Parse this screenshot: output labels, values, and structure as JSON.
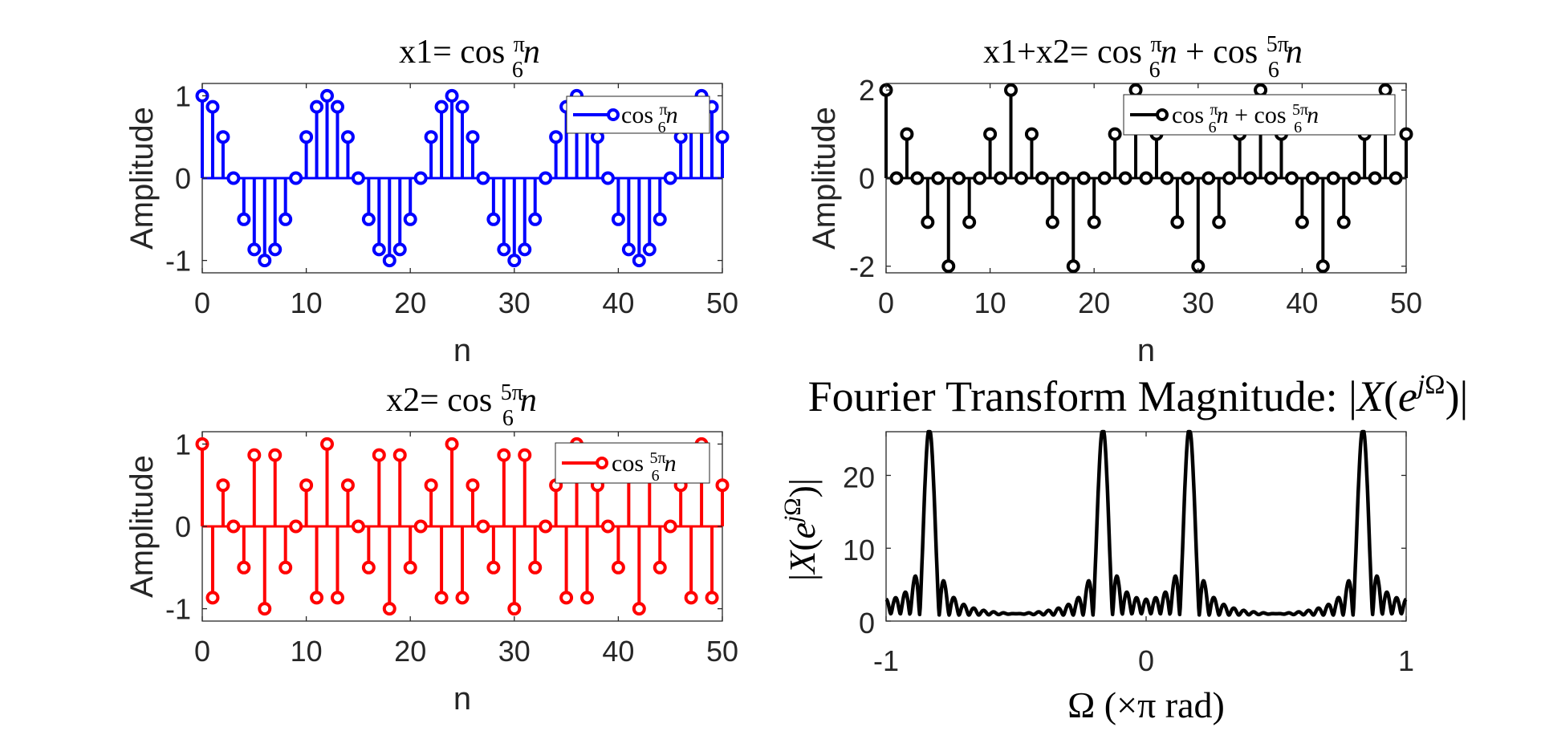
{
  "chart_data": [
    {
      "type": "stem",
      "title": "x1= cos π/6 n",
      "xlabel": "n",
      "ylabel": "Amplitude",
      "xlim": [
        0,
        50
      ],
      "ylim": [
        -1.15,
        1.15
      ],
      "xticks": [
        "0",
        "10",
        "20",
        "30",
        "40",
        "50"
      ],
      "yticks": [
        "1",
        "0",
        "-1"
      ],
      "color": "#0000ff",
      "legend": {
        "label": "cos π/6 n",
        "placement": "top-right"
      },
      "series": [
        {
          "x_start": 0,
          "x_end": 50,
          "step": 1,
          "formula": "cos(π/6 n)"
        }
      ]
    },
    {
      "type": "stem",
      "title": "x1+x2= cos π/6 n + cos 5π/6 n",
      "xlabel": "n",
      "ylabel": "Amplitude",
      "xlim": [
        0,
        50
      ],
      "ylim": [
        -2.15,
        2.15
      ],
      "xticks": [
        "0",
        "10",
        "20",
        "30",
        "40",
        "50"
      ],
      "yticks": [
        "2",
        "0",
        "-2"
      ],
      "color": "#000000",
      "legend": {
        "label": "cos π/6 n + cos 5π/6 n",
        "placement": "top-right"
      },
      "series": [
        {
          "x_start": 0,
          "x_end": 50,
          "step": 1,
          "formula": "cos(π/6 n) + cos(5π/6 n)"
        }
      ]
    },
    {
      "type": "stem",
      "title": "x2= cos 5π/6 n",
      "xlabel": "n",
      "ylabel": "Amplitude",
      "xlim": [
        0,
        50
      ],
      "ylim": [
        -1.15,
        1.15
      ],
      "xticks": [
        "0",
        "10",
        "20",
        "30",
        "40",
        "50"
      ],
      "yticks": [
        "1",
        "0",
        "-1"
      ],
      "color": "#ff0000",
      "legend": {
        "label": "cos 5π/6 n",
        "placement": "top-right"
      },
      "series": [
        {
          "x_start": 0,
          "x_end": 50,
          "step": 1,
          "formula": "cos(5π/6 n)"
        }
      ]
    },
    {
      "type": "line",
      "title": "Fourier Transform Magnitude: |X(e^{jΩ})|",
      "xlabel": "Ω (×π rad)",
      "ylabel": "|X(e^{jΩ})|",
      "xlim": [
        -1,
        1
      ],
      "ylim": [
        0,
        26
      ],
      "xticks": [
        "-1",
        "0",
        "1"
      ],
      "yticks": [
        "20",
        "10",
        "0"
      ],
      "color": "#000000",
      "series": [
        {
          "formula": "|DTFT of x1+x2, n = 0..50|",
          "peaks_at": [
            -0.8333,
            -0.1667,
            0.1667,
            0.8333
          ],
          "peak_value": 26
        }
      ]
    }
  ]
}
